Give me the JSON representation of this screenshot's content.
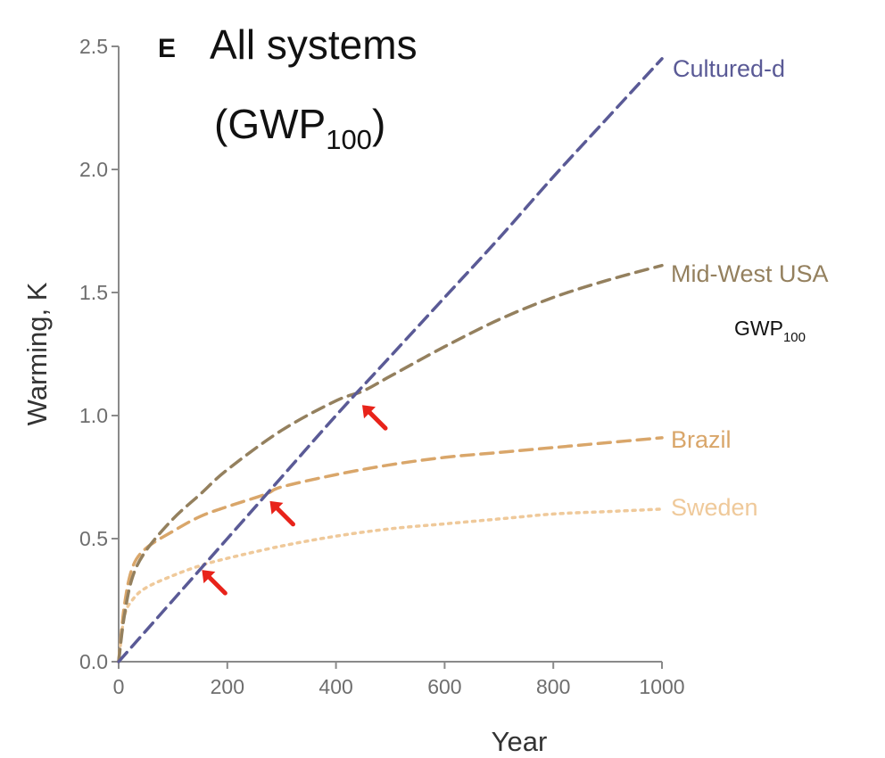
{
  "chart_data": {
    "type": "line",
    "panel_letter": "E",
    "title_line1": "All systems",
    "title_line2_prefix": "(GWP",
    "title_line2_sub": "100",
    "title_line2_suffix": ")",
    "xlabel": "Year",
    "ylabel": "Warming, K",
    "xlim": [
      0,
      1000
    ],
    "ylim": [
      0,
      2.5
    ],
    "x_ticks": [
      0,
      200,
      400,
      600,
      800,
      1000
    ],
    "y_ticks": [
      0.0,
      0.5,
      1.0,
      1.5,
      2.0,
      2.5
    ],
    "x_tick_labels": [
      "0",
      "200",
      "400",
      "600",
      "800",
      "1000"
    ],
    "y_tick_labels": [
      "0.0",
      "0.5",
      "1.0",
      "1.5",
      "2.0",
      "2.5"
    ],
    "grid": false,
    "series": [
      {
        "name": "Cultured-d",
        "color": "#5a5a96",
        "dash": "dashed",
        "x": [
          0,
          100,
          200,
          300,
          400,
          500,
          600,
          700,
          800,
          900,
          1000
        ],
        "y": [
          0.0,
          0.25,
          0.5,
          0.75,
          1.0,
          1.24,
          1.48,
          1.72,
          1.97,
          2.21,
          2.45
        ]
      },
      {
        "name": "Mid-West USA",
        "color": "#94805e",
        "dash": "dashed",
        "x": [
          0,
          10,
          25,
          50,
          100,
          150,
          200,
          300,
          400,
          450,
          500,
          600,
          700,
          800,
          900,
          1000
        ],
        "y": [
          0.0,
          0.18,
          0.34,
          0.45,
          0.58,
          0.68,
          0.78,
          0.94,
          1.06,
          1.1,
          1.16,
          1.28,
          1.39,
          1.48,
          1.55,
          1.61
        ]
      },
      {
        "name": "Brazil",
        "color": "#d9a66a",
        "dash": "dashed",
        "x": [
          0,
          10,
          25,
          50,
          100,
          150,
          200,
          270,
          300,
          400,
          500,
          600,
          700,
          800,
          900,
          1000
        ],
        "y": [
          0.0,
          0.22,
          0.38,
          0.46,
          0.53,
          0.59,
          0.63,
          0.68,
          0.71,
          0.76,
          0.8,
          0.83,
          0.85,
          0.87,
          0.89,
          0.91
        ]
      },
      {
        "name": "Sweden",
        "color": "#efc99a",
        "dash": "dotted",
        "x": [
          0,
          10,
          25,
          50,
          100,
          150,
          200,
          300,
          400,
          500,
          600,
          700,
          800,
          900,
          1000
        ],
        "y": [
          0.0,
          0.18,
          0.25,
          0.3,
          0.35,
          0.39,
          0.42,
          0.47,
          0.51,
          0.54,
          0.56,
          0.58,
          0.6,
          0.61,
          0.62
        ]
      }
    ],
    "annotation": {
      "text": "GWP",
      "sub": "100",
      "near_series": "Mid-West USA"
    },
    "arrows": [
      {
        "x": 150,
        "y": 0.38,
        "color": "#e8231a"
      },
      {
        "x": 275,
        "y": 0.66,
        "color": "#e8231a"
      },
      {
        "x": 445,
        "y": 1.05,
        "color": "#e8231a"
      }
    ]
  }
}
